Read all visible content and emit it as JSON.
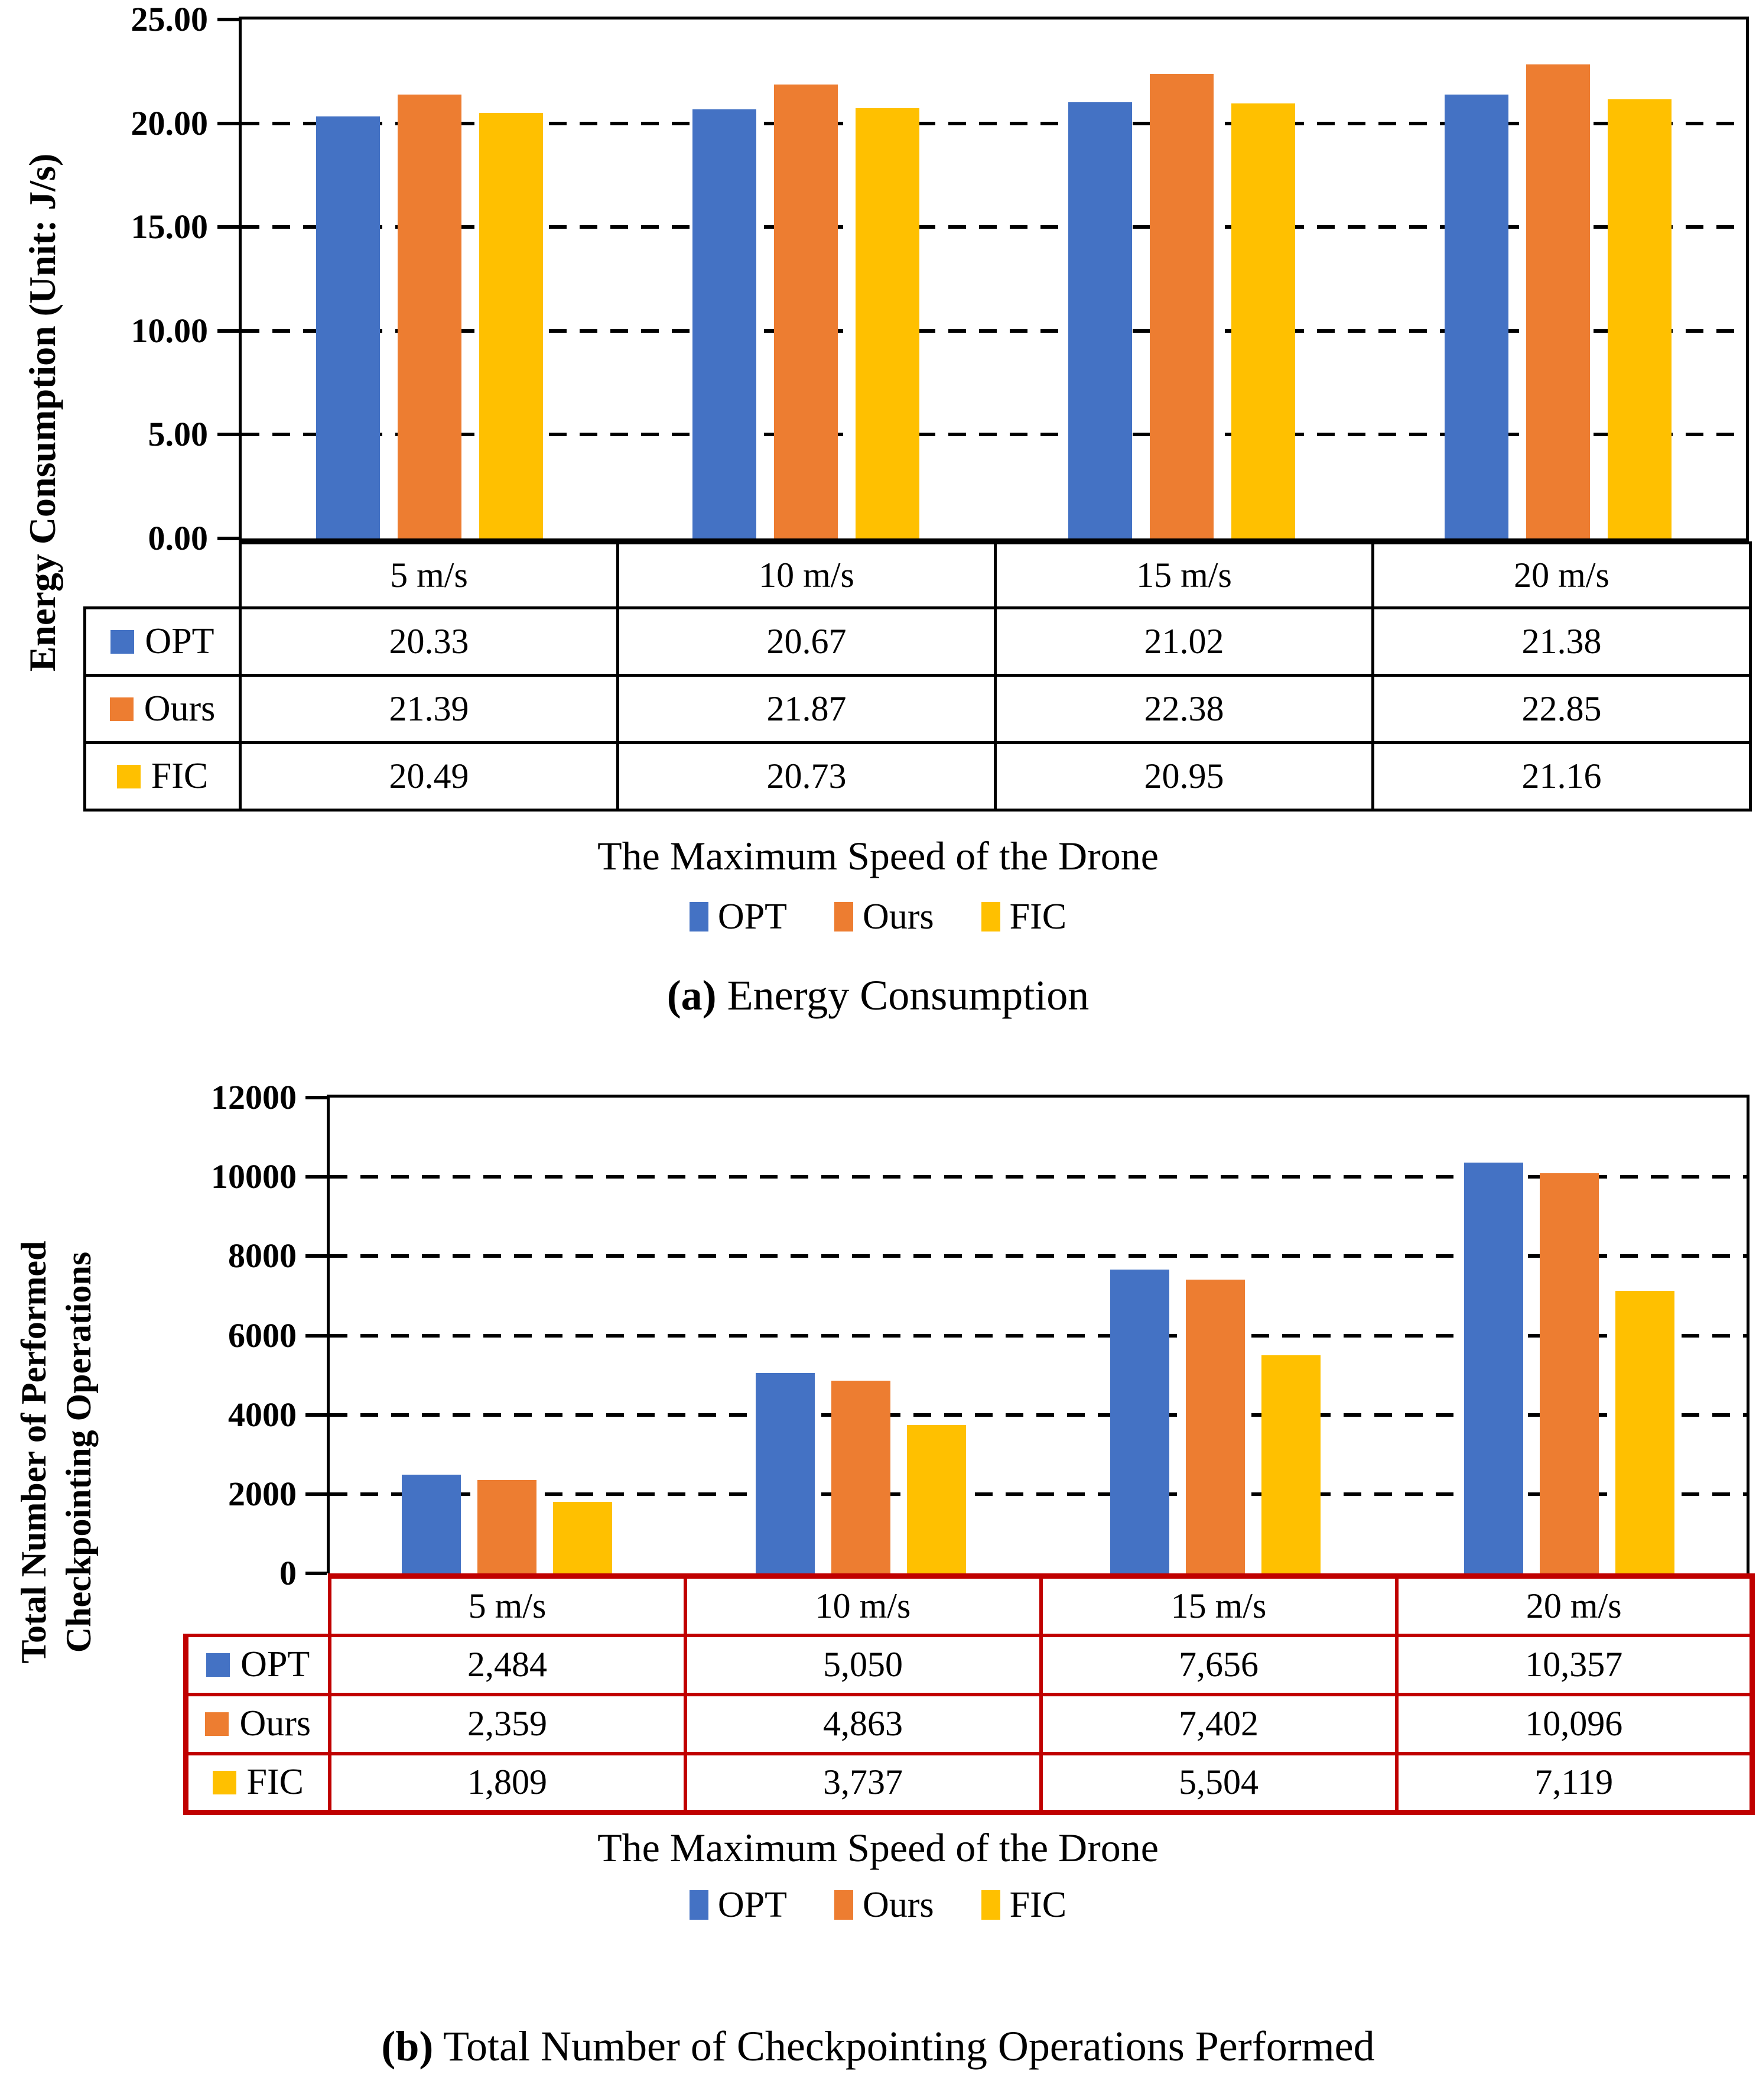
{
  "page": {
    "background": "#FFFFFF"
  },
  "chart_data": [
    {
      "type": "bar",
      "panel": "a",
      "caption_tag": "(a)",
      "caption_text": "Energy Consumption",
      "ylabel": "Energy Consumption (Unit: J/s)",
      "xlabel": "The Maximum Speed of the Drone",
      "categories": [
        "5 m/s",
        "10 m/s",
        "15 m/s",
        "20 m/s"
      ],
      "series": [
        {
          "name": "OPT",
          "color": "#4472C4",
          "values": [
            20.33,
            20.67,
            21.02,
            21.38
          ],
          "display": [
            "20.33",
            "20.67",
            "21.02",
            "21.38"
          ]
        },
        {
          "name": "Ours",
          "color": "#ED7D31",
          "values": [
            21.39,
            21.87,
            22.38,
            22.85
          ],
          "display": [
            "21.39",
            "21.87",
            "22.38",
            "22.85"
          ]
        },
        {
          "name": "FIC",
          "color": "#FFC000",
          "values": [
            20.49,
            20.73,
            20.95,
            21.16
          ],
          "display": [
            "20.49",
            "20.73",
            "20.95",
            "21.16"
          ]
        }
      ],
      "ylim": [
        0,
        25
      ],
      "yticks": [
        "25.00",
        "20.00",
        "15.00",
        "10.00",
        "5.00",
        "0.00"
      ],
      "grid": {
        "horizontal": true,
        "style": "dashed",
        "color": "#000000"
      },
      "legend_position": "bottom",
      "legend_labels": [
        "OPT",
        "Ours",
        "FIC"
      ],
      "table_border_color": "#000000"
    },
    {
      "type": "bar",
      "panel": "b",
      "caption_tag": "(b)",
      "caption_text": "Total Number of Checkpointing Operations Performed",
      "ylabel": "Total Number of Performed Checkpointing Operations",
      "ylabel_lines": [
        "Total Number of Performed",
        "Checkpointing Operations"
      ],
      "xlabel": "The Maximum Speed of the Drone",
      "categories": [
        "5 m/s",
        "10 m/s",
        "15 m/s",
        "20 m/s"
      ],
      "series": [
        {
          "name": "OPT",
          "color": "#4472C4",
          "values": [
            2484,
            5050,
            7656,
            10357
          ],
          "display": [
            "2,484",
            "5,050",
            "7,656",
            "10,357"
          ]
        },
        {
          "name": "Ours",
          "color": "#ED7D31",
          "values": [
            2359,
            4863,
            7402,
            10096
          ],
          "display": [
            "2,359",
            "4,863",
            "7,402",
            "10,096"
          ]
        },
        {
          "name": "FIC",
          "color": "#FFC000",
          "values": [
            1809,
            3737,
            5504,
            7119
          ],
          "display": [
            "1,809",
            "3,737",
            "5,504",
            "7,119"
          ]
        }
      ],
      "ylim": [
        0,
        12000
      ],
      "yticks": [
        "12000",
        "10000",
        "8000",
        "6000",
        "4000",
        "2000",
        "0"
      ],
      "grid": {
        "horizontal": true,
        "style": "dashed",
        "color": "#000000"
      },
      "legend_position": "bottom",
      "legend_labels": [
        "OPT",
        "Ours",
        "FIC"
      ],
      "table_border_color": "#C00000"
    }
  ]
}
